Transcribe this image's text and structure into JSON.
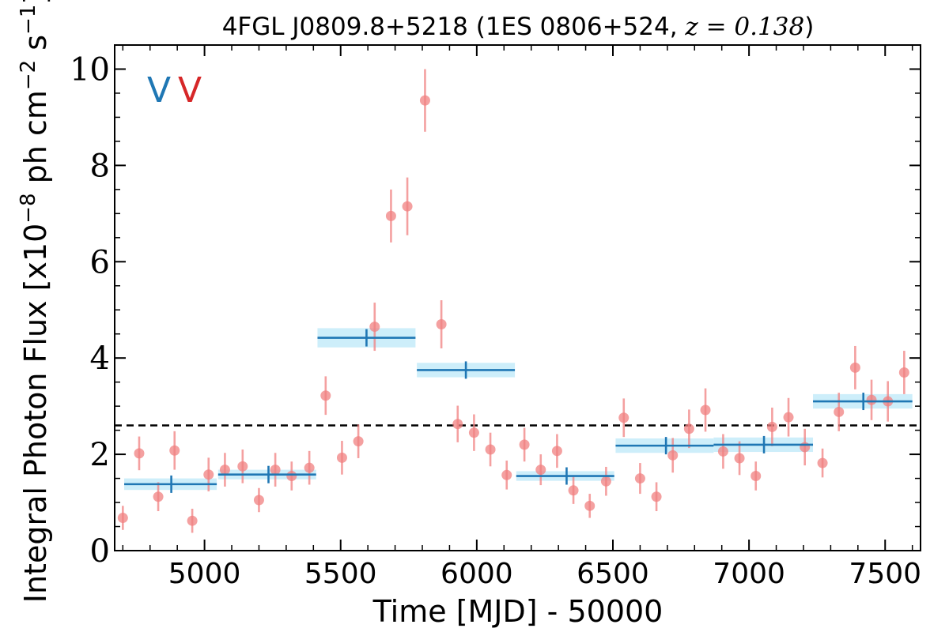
{
  "chart_data": {
    "type": "scatter",
    "title": {
      "text": "4FGL J0809.8+5218 (1ES 0806+524, ",
      "math": "z = 0.138",
      "close": ")"
    },
    "xlabel": "Time [MJD] - 50000",
    "ylabel": "Integral Photon Flux [x10",
    "ylabel_exp": "−8",
    "ylabel_mid": " ph cm",
    "ylabel_exp2": "−2",
    "ylabel_end": " s",
    "ylabel_exp3": "−1",
    "ylabel_close": "]",
    "xlim": [
      4670,
      7630
    ],
    "ylim": [
      0,
      10.5
    ],
    "xticks": [
      5000,
      5500,
      6000,
      6500,
      7000,
      7500
    ],
    "xtick_labels": [
      "5000",
      "5500",
      "6000",
      "6500",
      "7000",
      "7500"
    ],
    "yticks": [
      0,
      2,
      4,
      6,
      8,
      10
    ],
    "ytick_labels": [
      "0",
      "2",
      "4",
      "6",
      "8",
      "10"
    ],
    "grid": false,
    "markers": [
      {
        "label": "V",
        "color": "#1f77b4"
      },
      {
        "label": "V",
        "color": "#d62728"
      }
    ],
    "mean_flux": 2.6,
    "series": [
      {
        "color": "#f08080",
        "x": [
          4700,
          4760,
          4830,
          4890,
          4955,
          5015,
          5075,
          5140,
          5200,
          5260,
          5320,
          5385,
          5445,
          5505,
          5565,
          5625,
          5685,
          5745,
          5810,
          5870,
          5930,
          5990,
          6050,
          6110,
          6175,
          6235,
          6295,
          6355,
          6415,
          6475,
          6540,
          6600,
          6660,
          6720,
          6780,
          6840,
          6905,
          6965,
          7025,
          7085,
          7145,
          7205,
          7270,
          7330,
          7390,
          7450,
          7510,
          7570
        ],
        "y": [
          0.68,
          2.02,
          1.12,
          2.08,
          0.62,
          1.58,
          1.68,
          1.75,
          1.05,
          1.68,
          1.55,
          1.72,
          3.22,
          1.93,
          2.27,
          4.65,
          6.95,
          7.15,
          9.35,
          4.7,
          2.63,
          2.45,
          2.1,
          1.57,
          2.2,
          1.68,
          2.07,
          1.25,
          0.93,
          1.44,
          2.76,
          1.5,
          1.12,
          1.98,
          2.53,
          2.92,
          2.06,
          1.92,
          1.55,
          2.57,
          2.77,
          2.15,
          1.82,
          2.88,
          3.8,
          3.13,
          3.1,
          3.7
        ],
        "yerr": [
          0.25,
          0.35,
          0.3,
          0.4,
          0.25,
          0.35,
          0.35,
          0.35,
          0.25,
          0.35,
          0.3,
          0.35,
          0.4,
          0.35,
          0.35,
          0.5,
          0.55,
          0.6,
          0.65,
          0.5,
          0.38,
          0.38,
          0.35,
          0.3,
          0.35,
          0.32,
          0.35,
          0.28,
          0.25,
          0.3,
          0.4,
          0.32,
          0.3,
          0.36,
          0.4,
          0.45,
          0.36,
          0.35,
          0.3,
          0.4,
          0.4,
          0.38,
          0.3,
          0.4,
          0.45,
          0.42,
          0.42,
          0.45
        ]
      },
      {
        "color": "#1f77b4",
        "band_color": "#cdeefa",
        "x_start": [
          4705,
          5050,
          5415,
          5780,
          6145,
          6510,
          6870,
          7235
        ],
        "x_end": [
          5045,
          5410,
          5775,
          6140,
          6505,
          6870,
          7235,
          7600
        ],
        "x_center": [
          4878,
          5235,
          5595,
          5960,
          6330,
          6695,
          7055,
          7420
        ],
        "y": [
          1.38,
          1.58,
          4.42,
          3.75,
          1.55,
          2.18,
          2.2,
          3.1
        ],
        "yerr": [
          0.12,
          0.1,
          0.2,
          0.15,
          0.1,
          0.15,
          0.15,
          0.15
        ]
      }
    ]
  }
}
